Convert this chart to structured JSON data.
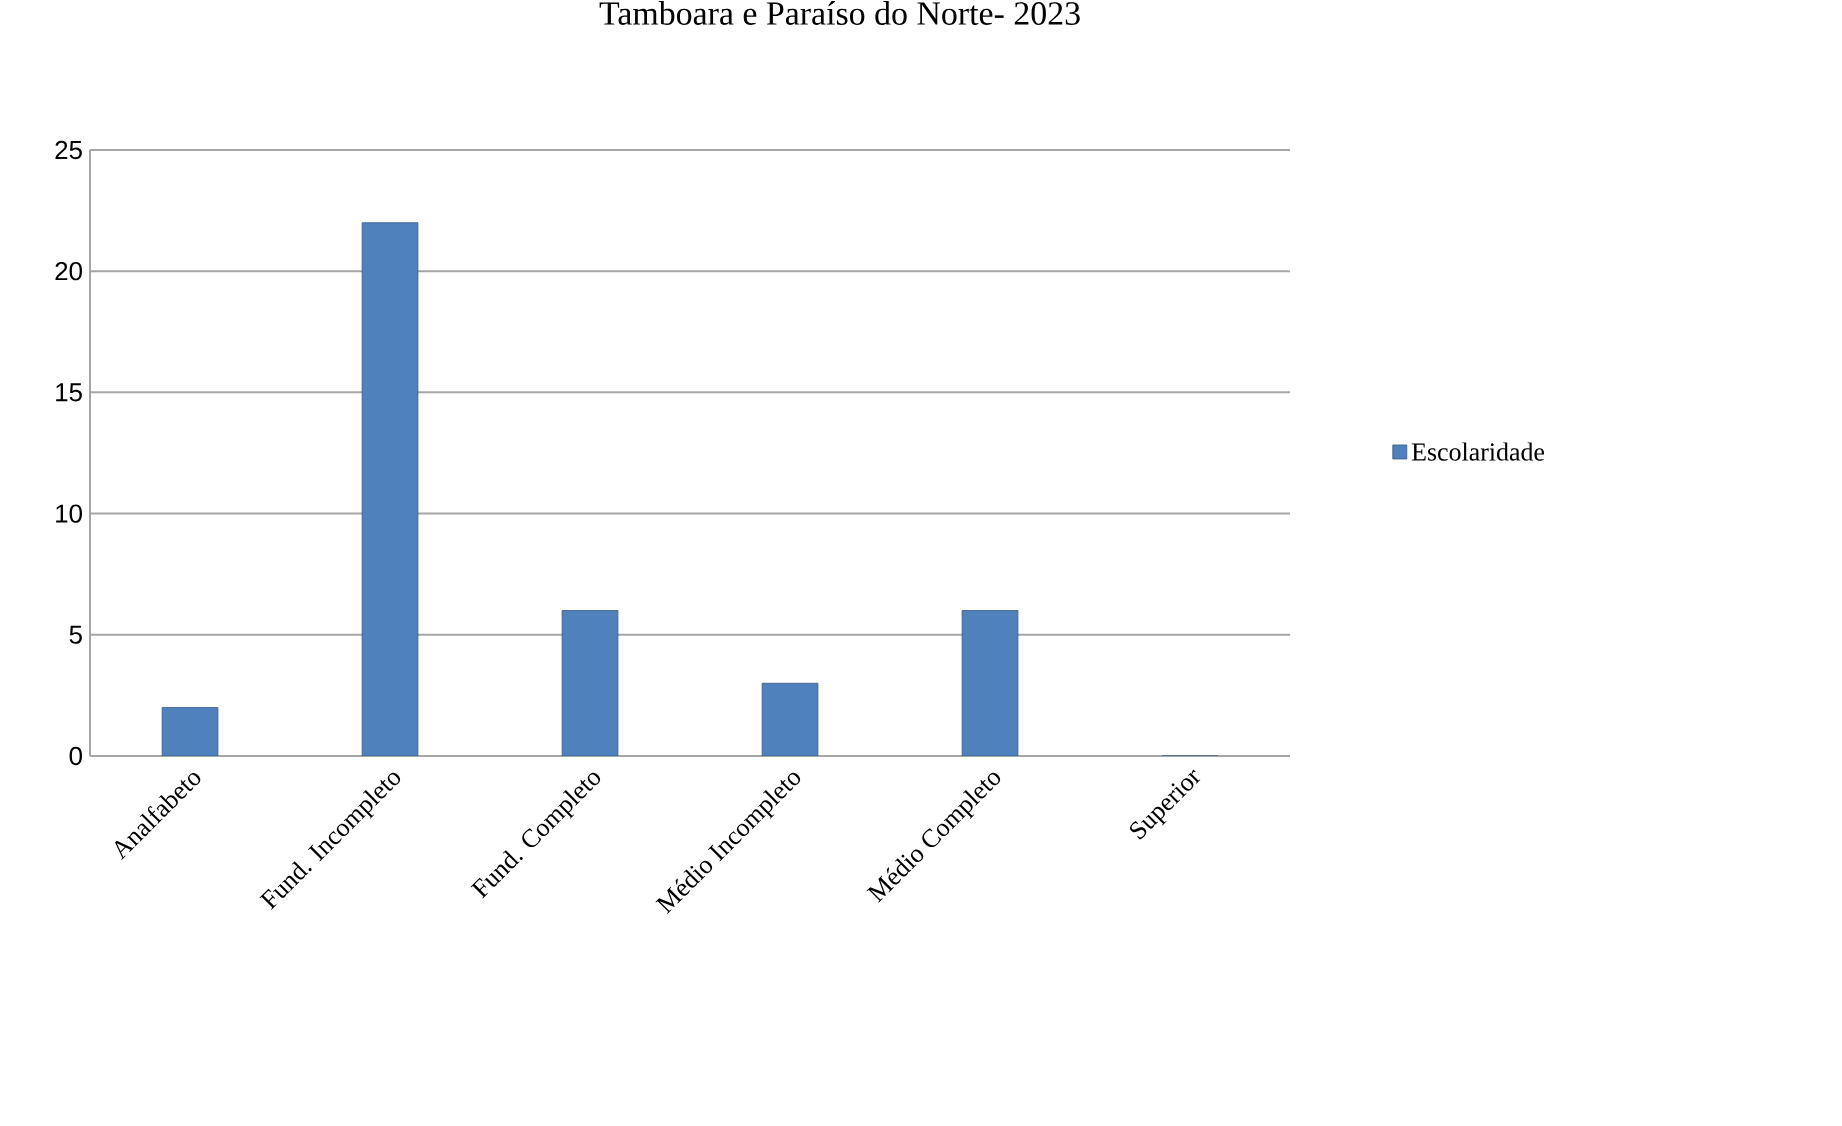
{
  "chart_data": {
    "type": "bar",
    "title": "Tamboara e Paraíso do Norte- 2023",
    "categories": [
      "Analfabeto",
      "Fund. Incompleto",
      "Fund. Completo",
      "Médio Incompleto",
      "Médio Completo",
      "Superior"
    ],
    "series": [
      {
        "name": "Escolaridade",
        "color": "#4f81bd",
        "values": [
          2,
          22,
          6,
          3,
          6,
          0
        ]
      }
    ],
    "ylim": [
      0,
      25
    ],
    "yticks": [
      0,
      5,
      10,
      15,
      20,
      25
    ],
    "grid": "y",
    "legend": "right"
  }
}
